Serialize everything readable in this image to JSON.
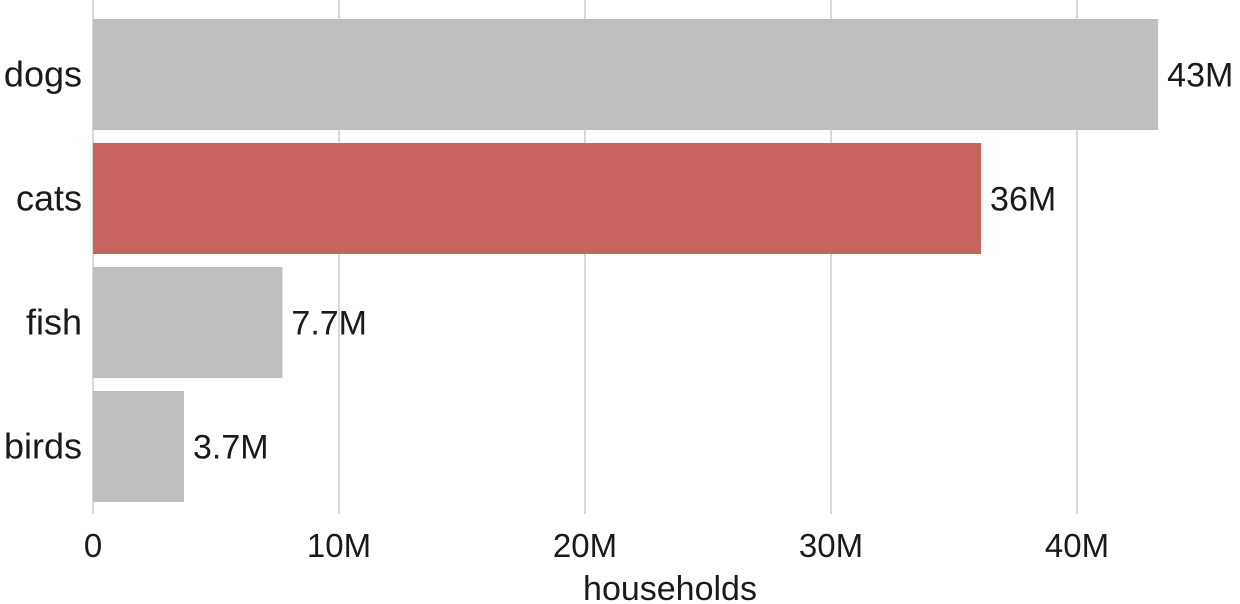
{
  "chart_data": {
    "type": "bar",
    "orientation": "horizontal",
    "categories": [
      "dogs",
      "cats",
      "fish",
      "birds"
    ],
    "values": [
      43.3,
      36.1,
      7.7,
      3.7
    ],
    "value_labels": [
      "43M",
      "36M",
      "7.7M",
      "3.7M"
    ],
    "xlabel": "households",
    "ylabel": "",
    "xlim": [
      0,
      45
    ],
    "xticks": [
      0,
      10,
      20,
      30,
      40
    ],
    "xtick_labels": [
      "0",
      "10M",
      "20M",
      "30M",
      "40M"
    ],
    "grid": "vertical",
    "highlight": "cats",
    "colors": {
      "default": "#bfbfbf",
      "highlight": "#c8645e"
    }
  }
}
